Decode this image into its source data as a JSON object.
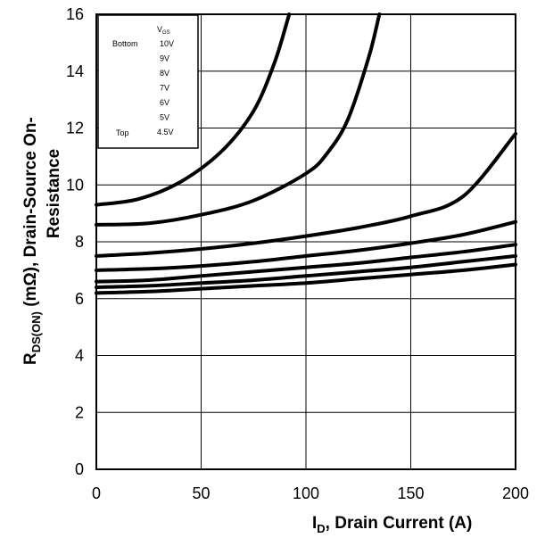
{
  "chart_data": {
    "type": "line",
    "xlim": [
      0,
      200
    ],
    "ylim": [
      0,
      16
    ],
    "x_ticks": [
      0,
      50,
      100,
      150,
      200
    ],
    "y_ticks": [
      0,
      2,
      4,
      6,
      8,
      10,
      12,
      14,
      16
    ],
    "grid": true,
    "xlabel": {
      "main": "I",
      "sub": "D",
      "rest": ", Drain Current (A)"
    },
    "ylabel": {
      "main": "R",
      "sub": "DS(ON)",
      "rest": "  (mΩ), Drain-Source On-",
      "line2": "Resistance"
    },
    "legend": {
      "placement": "top-left",
      "header_main": "V",
      "header_sub": "GS",
      "bottom_label": "Bottom",
      "top_label": "Top",
      "entries": [
        "10V",
        "9V",
        "8V",
        "7V",
        "6V",
        "5V",
        "4.5V"
      ]
    },
    "series": [
      {
        "x": [
          0,
          25,
          50,
          75,
          100,
          125,
          150,
          175,
          200
        ],
        "y": [
          6.2,
          6.25,
          6.35,
          6.45,
          6.55,
          6.7,
          6.85,
          7.0,
          7.2
        ]
      },
      {
        "x": [
          0,
          25,
          50,
          75,
          100,
          125,
          150,
          175,
          200
        ],
        "y": [
          6.4,
          6.45,
          6.55,
          6.65,
          6.8,
          6.95,
          7.1,
          7.3,
          7.5
        ]
      },
      {
        "x": [
          0,
          25,
          50,
          75,
          100,
          125,
          150,
          175,
          200
        ],
        "y": [
          6.6,
          6.65,
          6.8,
          6.95,
          7.1,
          7.25,
          7.45,
          7.65,
          7.9
        ]
      },
      {
        "x": [
          0,
          25,
          50,
          75,
          100,
          125,
          150,
          175,
          200
        ],
        "y": [
          7.0,
          7.05,
          7.15,
          7.3,
          7.5,
          7.7,
          7.95,
          8.25,
          8.7
        ]
      },
      {
        "x": [
          0,
          25,
          50,
          75,
          100,
          125,
          150,
          175,
          200
        ],
        "y": [
          7.5,
          7.6,
          7.75,
          7.95,
          8.2,
          8.5,
          8.9,
          9.6,
          11.8
        ]
      },
      {
        "x": [
          0,
          25,
          50,
          75,
          100,
          110,
          120,
          130,
          135
        ],
        "y": [
          8.6,
          8.65,
          8.95,
          9.45,
          10.4,
          11.1,
          12.3,
          14.5,
          16.0
        ]
      },
      {
        "x": [
          0,
          20,
          40,
          60,
          75,
          85,
          92
        ],
        "y": [
          9.3,
          9.5,
          10.1,
          11.2,
          12.6,
          14.3,
          16.0
        ]
      }
    ]
  }
}
